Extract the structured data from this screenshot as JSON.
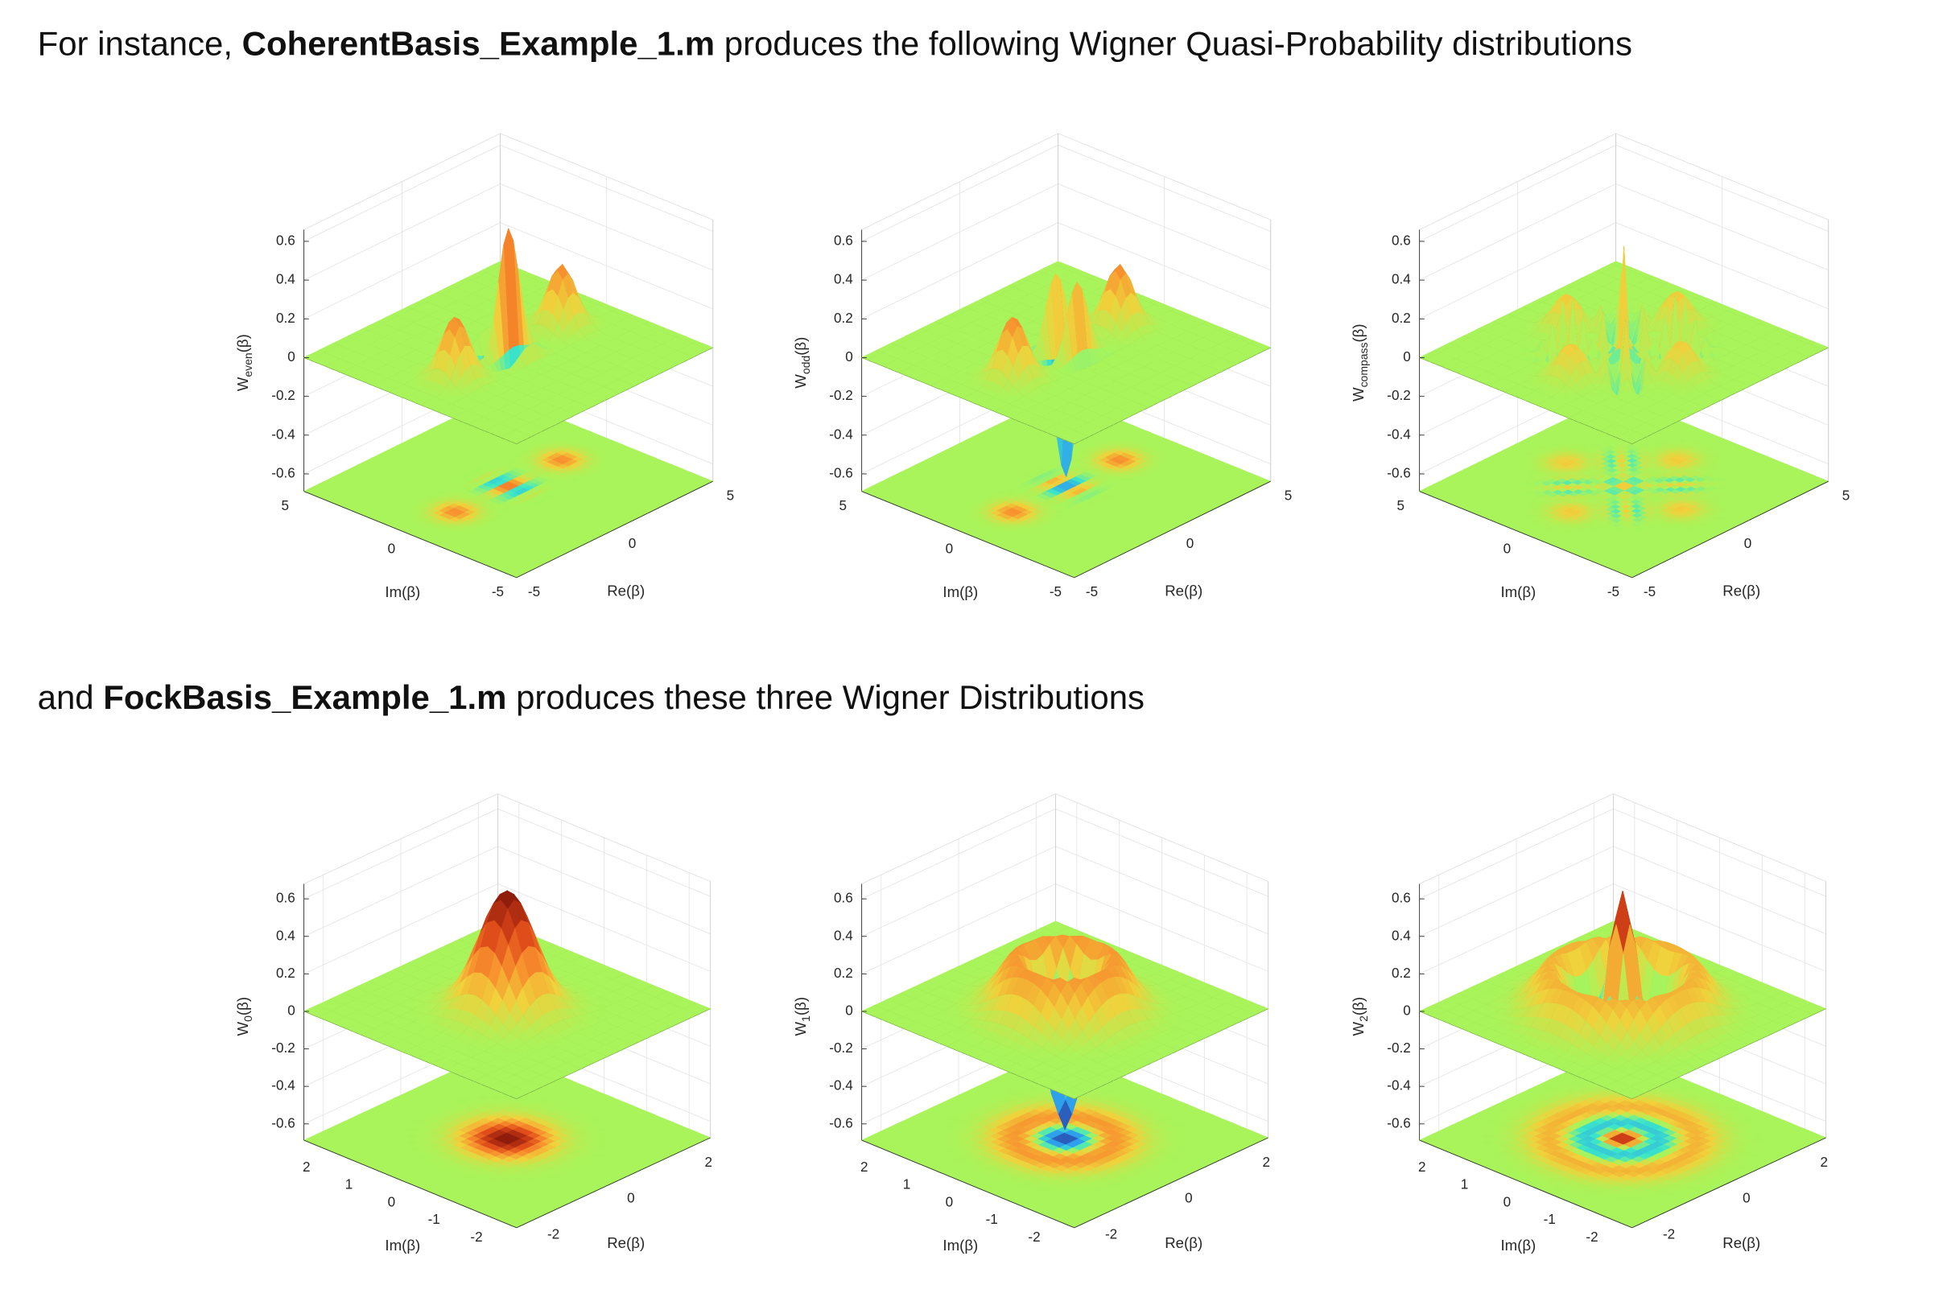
{
  "paragraphs": [
    {
      "text": [
        "For instance, ",
        "CoherentBasis_Example_1.m",
        " produces the following Wigner Quasi-Probability distributions"
      ]
    },
    {
      "text": [
        "and ",
        "FockBasis_Example_1.m",
        " produces these three Wigner Distributions"
      ]
    }
  ],
  "figures": [
    {
      "panels": [
        {
          "zlabel": "W",
          "zsub": "even",
          "zarg": "(β)",
          "zticks": [
            0.6,
            0.4,
            0.2,
            0,
            -0.2,
            -0.4,
            -0.6
          ],
          "ylabel": "Im(β)",
          "yticks": [
            5,
            0,
            -5
          ],
          "xlabel": "Re(β)",
          "xticks": [
            -5,
            0,
            5
          ]
        },
        {
          "zlabel": "W",
          "zsub": "odd",
          "zarg": "(β)",
          "zticks": [
            0.6,
            0.4,
            0.2,
            0,
            -0.2,
            -0.4,
            -0.6
          ],
          "ylabel": "Im(β)",
          "yticks": [
            5,
            0,
            -5
          ],
          "xlabel": "Re(β)",
          "xticks": [
            -5,
            0,
            5
          ]
        },
        {
          "zlabel": "W",
          "zsub": "compass",
          "zarg": "(β)",
          "zticks": [
            0.6,
            0.4,
            0.2,
            0,
            -0.2,
            -0.4,
            -0.6
          ],
          "ylabel": "Im(β)",
          "yticks": [
            5,
            0,
            -5
          ],
          "xlabel": "Re(β)",
          "xticks": [
            -5,
            0,
            5
          ]
        }
      ]
    },
    {
      "panels": [
        {
          "zlabel": "W",
          "zsub": "0",
          "zarg": "(β)",
          "zticks": [
            0.6,
            0.4,
            0.2,
            0,
            -0.2,
            -0.4,
            -0.6
          ],
          "ylabel": "Im(β)",
          "yticks": [
            2,
            1,
            0,
            -1,
            -2
          ],
          "xlabel": "Re(β)",
          "xticks": [
            -2,
            0,
            2
          ]
        },
        {
          "zlabel": "W",
          "zsub": "1",
          "zarg": "(β)",
          "zticks": [
            0.6,
            0.4,
            0.2,
            0,
            -0.2,
            -0.4,
            -0.6
          ],
          "ylabel": "Im(β)",
          "yticks": [
            2,
            1,
            0,
            -1,
            -2
          ],
          "xlabel": "Re(β)",
          "xticks": [
            -2,
            0,
            2
          ]
        },
        {
          "zlabel": "W",
          "zsub": "2",
          "zarg": "(β)",
          "zticks": [
            0.6,
            0.4,
            0.2,
            0,
            -0.2,
            -0.4,
            -0.6
          ],
          "ylabel": "Im(β)",
          "yticks": [
            2,
            1,
            0,
            -1,
            -2
          ],
          "xlabel": "Re(β)",
          "xticks": [
            -2,
            0,
            2
          ]
        }
      ]
    }
  ]
}
